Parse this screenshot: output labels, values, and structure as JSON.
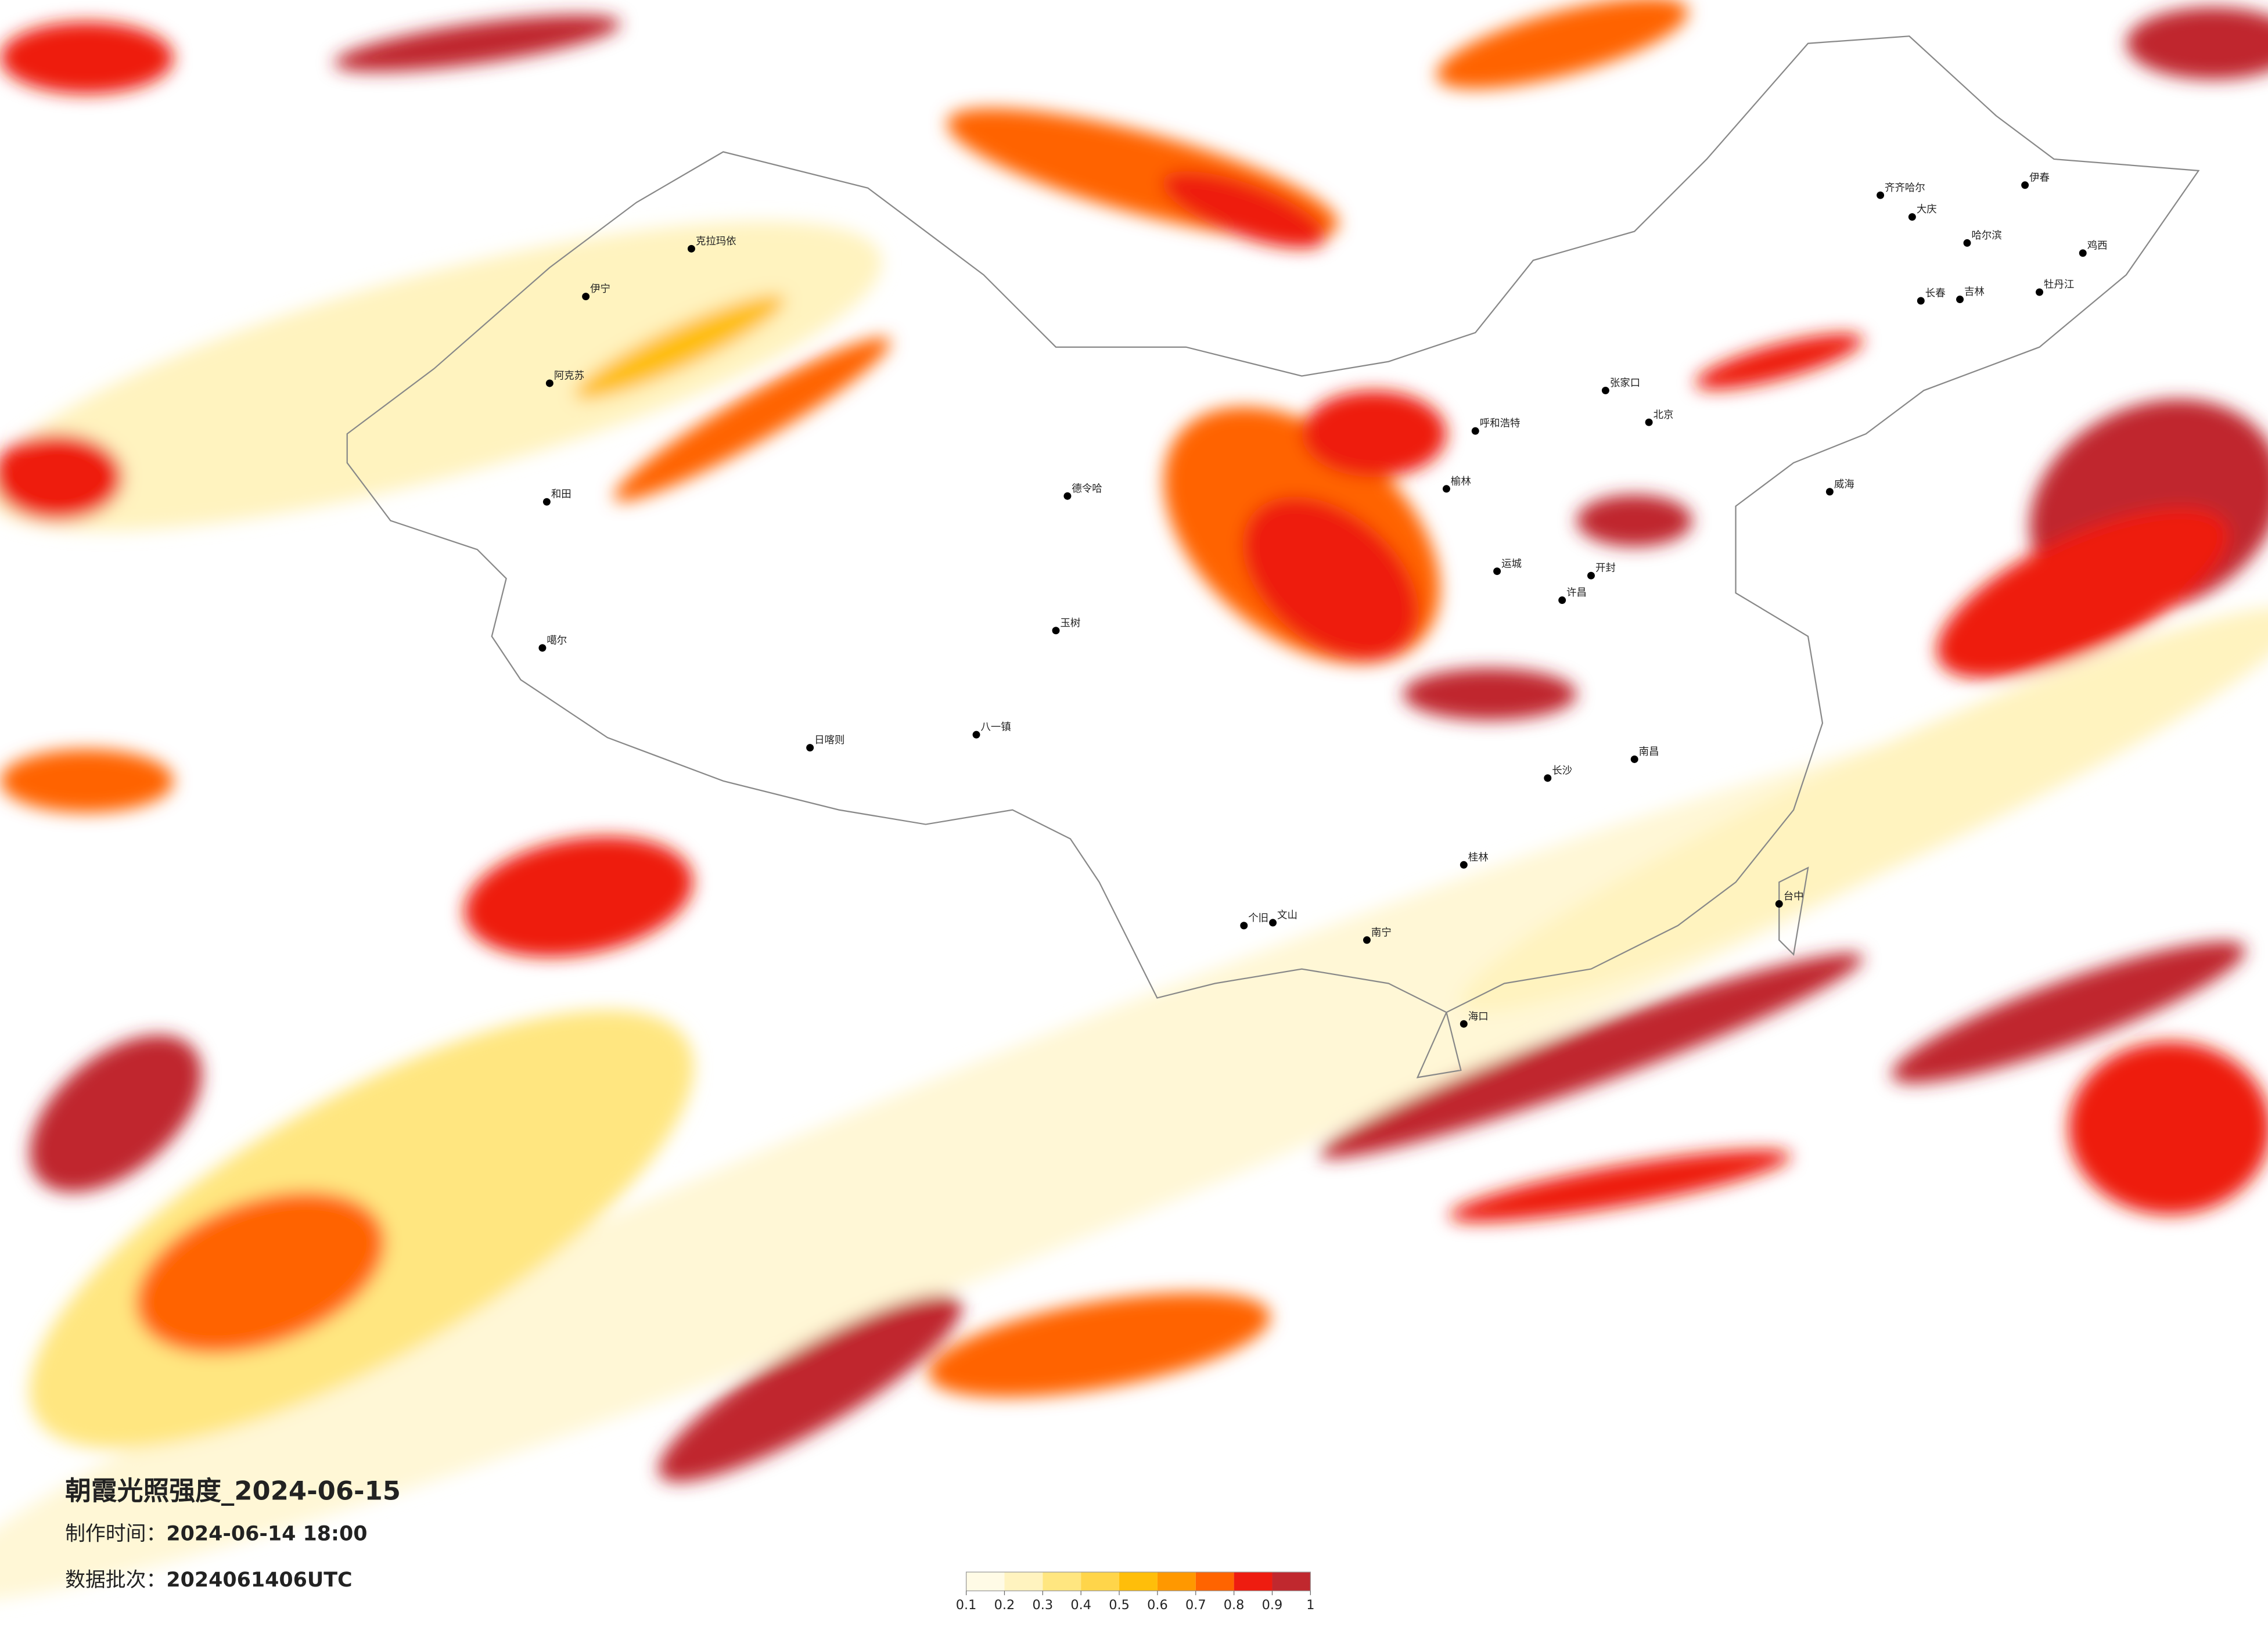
{
  "map": {
    "title": "朝霞光照强度_2024-06-15",
    "produced": {
      "label": "制作时间：",
      "value": "2024-06-14 18:00"
    },
    "batch": {
      "label": "数据批次：",
      "value": "2024061406UTC"
    },
    "legend": {
      "colors": [
        "#fffbe6",
        "#fff3bf",
        "#ffe680",
        "#ffd54a",
        "#ffbe0a",
        "#ff9800",
        "#ff6400",
        "#ee1c10",
        "#c0282e"
      ],
      "ticks": [
        0.1,
        0.2,
        0.3,
        0.4,
        0.5,
        0.6,
        0.7,
        0.8,
        0.9,
        1
      ]
    },
    "cities": [
      "克拉玛依",
      "伊宁",
      "阿克苏",
      "和田",
      "噶尔",
      "日喀则",
      "八一镇",
      "德令哈",
      "玉树",
      "呼和浩特",
      "北京",
      "张家口",
      "哈尔滨",
      "长春",
      "吉林",
      "齐齐哈尔",
      "大庆",
      "牡丹江",
      "鸡西",
      "伊春",
      "海口",
      "南宁",
      "台中",
      "个旧",
      "文山",
      "开封",
      "许昌",
      "南昌",
      "长沙",
      "桂林",
      "榆林",
      "运城",
      "威海"
    ]
  }
}
